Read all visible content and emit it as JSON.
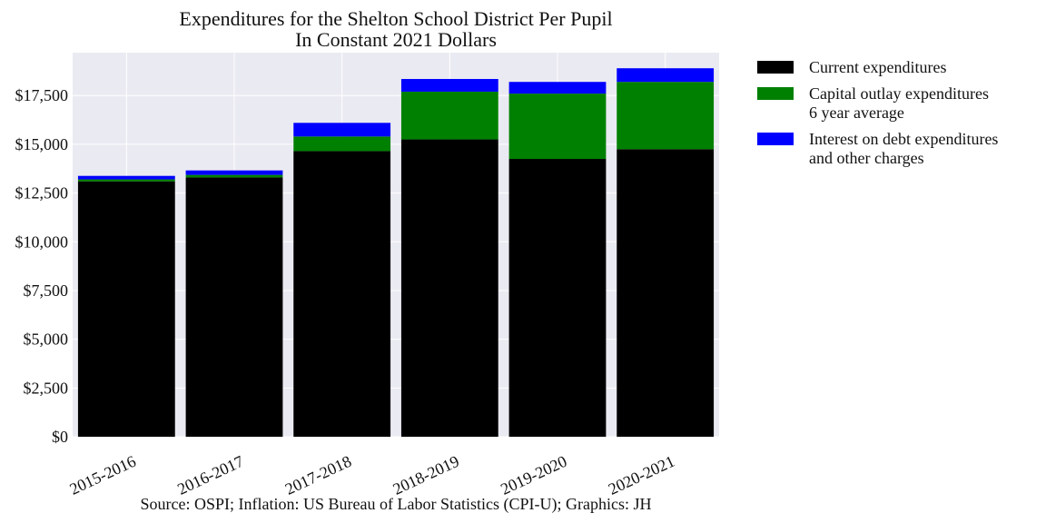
{
  "chart_data": {
    "type": "bar",
    "stacked": true,
    "title": "Expenditures for the Shelton School District Per Pupil\nIn Constant 2021 Dollars",
    "xlabel": "",
    "ylabel": "",
    "caption": "Source: OSPI; Inflation: US Bureau of Labor Statistics (CPI-U); Graphics: JH",
    "categories": [
      "2015-2016",
      "2016-2017",
      "2017-2018",
      "2018-2019",
      "2019-2020",
      "2020-2021"
    ],
    "ylim": [
      0,
      19700
    ],
    "yticks": [
      0,
      2500,
      5000,
      7500,
      10000,
      12500,
      15000,
      17500
    ],
    "ytick_labels": [
      "$0",
      "$2,500",
      "$5,000",
      "$7,500",
      "$10,000",
      "$12,500",
      "$15,000",
      "$17,500"
    ],
    "grid": true,
    "legend_position": "outside-right",
    "series": [
      {
        "name": "Current expenditures",
        "color": "#000000",
        "values": [
          13100,
          13300,
          14650,
          15250,
          14250,
          14750
        ]
      },
      {
        "name": "Capital outlay expenditures\n6 year average",
        "color": "#008000",
        "values": [
          100,
          130,
          750,
          2450,
          3350,
          3450
        ]
      },
      {
        "name": "Interest on debt expenditures\nand other charges",
        "color": "#0000ff",
        "values": [
          180,
          230,
          700,
          650,
          600,
          700
        ]
      }
    ]
  }
}
